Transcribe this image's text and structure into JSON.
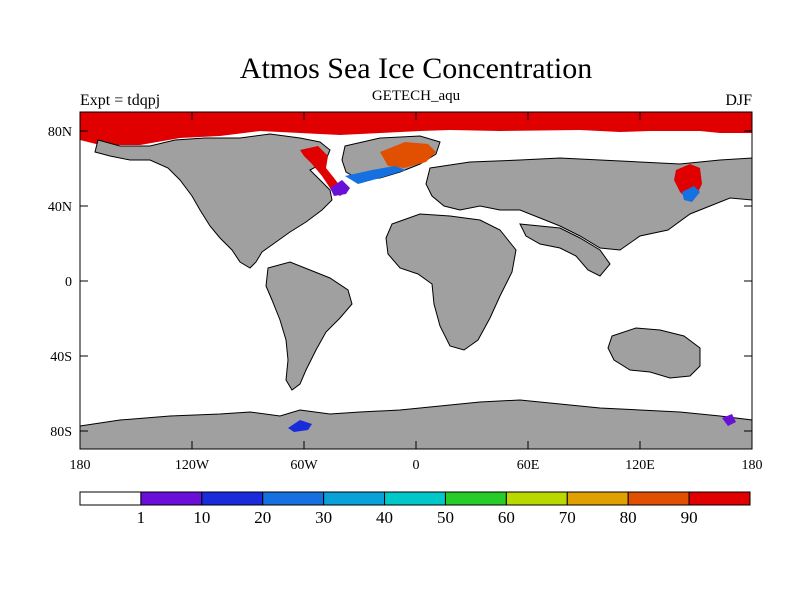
{
  "title": "Atmos Sea Ice Concentration",
  "subtitle": "GETECH_aqu",
  "left_label": "Expt = tdqpj",
  "right_label": "DJF",
  "colors": {
    "land": "#a0a0a0",
    "ocean": "#ffffff",
    "coast": "#000000"
  },
  "axes": {
    "x_ticks": [
      "180",
      "120W",
      "60W",
      "0",
      "60E",
      "120E",
      "180"
    ],
    "y_ticks": [
      "80N",
      "40N",
      "0",
      "40S",
      "80S"
    ]
  },
  "colorbar": {
    "labels": [
      "1",
      "10",
      "20",
      "30",
      "40",
      "50",
      "60",
      "70",
      "80",
      "90"
    ],
    "colors": [
      "#ffffff",
      "#6a0fd8",
      "#1a2bdc",
      "#1570e0",
      "#0aa0d8",
      "#00c8c8",
      "#28cc28",
      "#b8d800",
      "#e0a000",
      "#e05000",
      "#e00000"
    ]
  }
}
